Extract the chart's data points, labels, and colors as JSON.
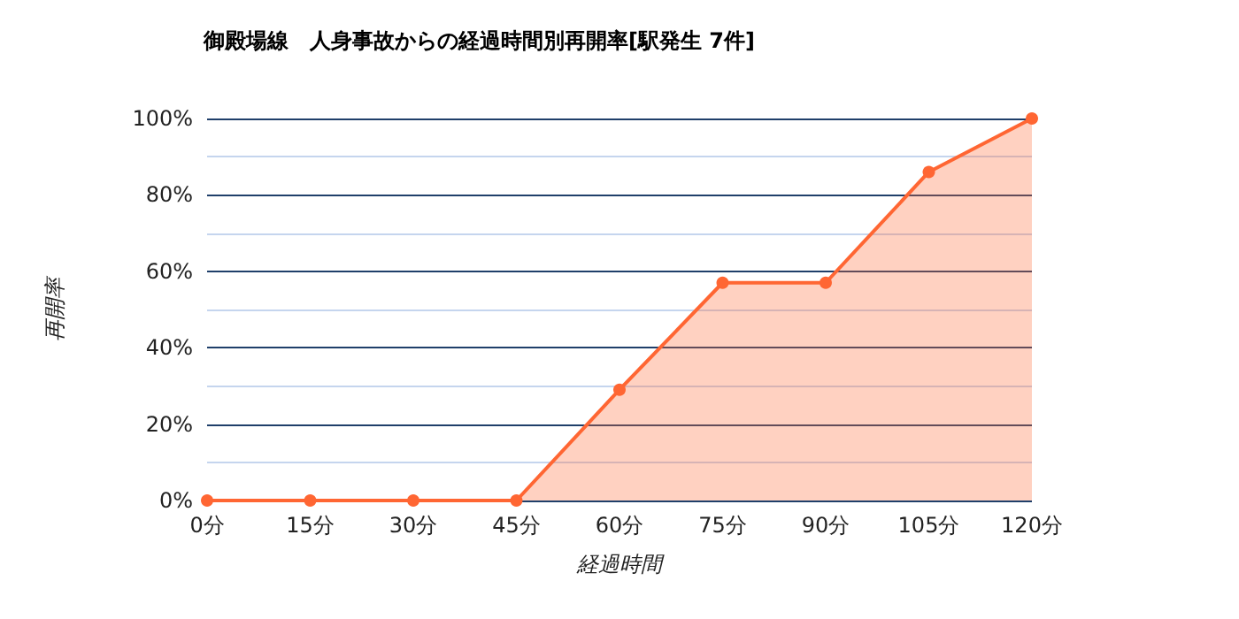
{
  "chart_data": {
    "type": "area",
    "title": "御殿場線　人身事故からの経過時間別再開率[駅発生 7件]",
    "xlabel": "経過時間",
    "ylabel": "再開率",
    "categories": [
      "0分",
      "15分",
      "30分",
      "45分",
      "60分",
      "75分",
      "90分",
      "105分",
      "120分"
    ],
    "series": [
      {
        "color": "#ff6633",
        "values": [
          0,
          0,
          0,
          0,
          29,
          57,
          57,
          86,
          100
        ]
      }
    ],
    "ylim": [
      0,
      100
    ],
    "yticks": [
      {
        "value": 0,
        "label": "0%"
      },
      {
        "value": 10,
        "label": null
      },
      {
        "value": 20,
        "label": "20%"
      },
      {
        "value": 30,
        "label": null
      },
      {
        "value": 40,
        "label": "40%"
      },
      {
        "value": 50,
        "label": null
      },
      {
        "value": 60,
        "label": "60%"
      },
      {
        "value": 70,
        "label": null
      },
      {
        "value": 80,
        "label": "80%"
      },
      {
        "value": 90,
        "label": null
      },
      {
        "value": 100,
        "label": "100%"
      }
    ],
    "grid": "y",
    "marker": "circle",
    "line_style": "solid"
  }
}
